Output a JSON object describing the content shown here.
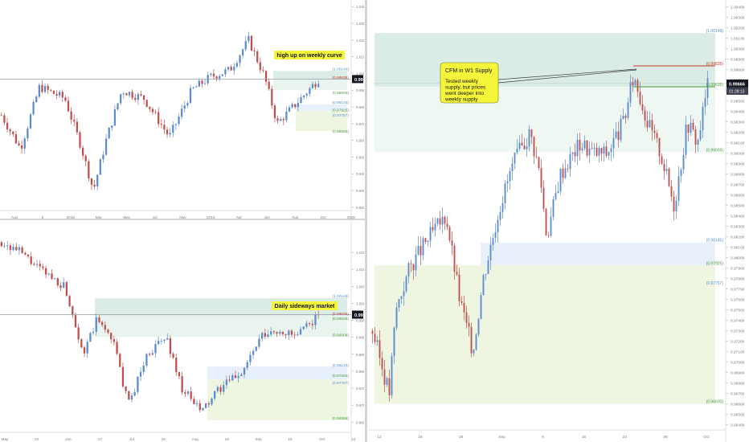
{
  "chart_data": [
    {
      "type": "candlestick",
      "timeframe": "weekly",
      "annotation": "high up on weekly curve",
      "price_axis_ticks": [
        "1.04000",
        "1.03000",
        "1.02000",
        "1.01000",
        "1.00000",
        "0.99000",
        "0.98000",
        "0.97000",
        "0.96000",
        "0.95000",
        "0.94000",
        "0.93000",
        "0.92000"
      ],
      "time_axis_ticks": [
        "Aug",
        "9",
        "2018",
        "Mar",
        "May",
        "Jul",
        "Nov",
        "2019",
        "Apr",
        "Jun",
        "Aug",
        "Oct",
        "2020"
      ],
      "current_price": "0.99666",
      "zone_labels": [
        {
          "text": "(1.00149)",
          "color": "#5b8fd4"
        },
        {
          "text": "(0.99635)",
          "color": "#c0392b"
        },
        {
          "text": "(0.99009)",
          "color": "#4a9a3c"
        },
        {
          "text": "(0.98145)",
          "color": "#5b8fd4"
        },
        {
          "text": "(0.97925)",
          "color": "#4a9a3c"
        },
        {
          "text": "(0.97757)",
          "color": "#5b8fd4"
        },
        {
          "text": "(0.96558)",
          "color": "#4a9a3c"
        }
      ],
      "ylim": [
        0.918,
        1.043
      ]
    },
    {
      "type": "candlestick",
      "timeframe": "daily",
      "annotation": "Daily sideways market",
      "price_axis_ticks": [
        "1.01500",
        "1.01000",
        "1.00500",
        "1.00000",
        "0.99500",
        "0.99000",
        "0.98500",
        "0.98000",
        "0.97500",
        "0.97000",
        "0.96500"
      ],
      "time_axis_ticks": [
        "May",
        "13",
        "Jun",
        "17",
        "Jul",
        "15",
        "Aug",
        "19",
        "Sep",
        "16",
        "Oct",
        "14"
      ],
      "current_price": "0.99666",
      "zone_labels": [
        {
          "text": "(1.00149)",
          "color": "#5b8fd4"
        },
        {
          "text": "(0.99635)",
          "color": "#c0392b"
        },
        {
          "text": "(0.99635)",
          "color": "#4a9a3c"
        },
        {
          "text": "(0.99009)",
          "color": "#4a9a3c"
        },
        {
          "text": "(0.98145)",
          "color": "#5b8fd4"
        },
        {
          "text": "(0.97925)",
          "color": "#4a9a3c"
        },
        {
          "text": "(0.97757)",
          "color": "#5b8fd4"
        },
        {
          "text": "(0.96558)",
          "color": "#4a9a3c"
        }
      ],
      "ylim": [
        0.962,
        1.024
      ]
    },
    {
      "type": "candlestick",
      "timeframe": "H4",
      "callout_title": "CFM in W1 Supply",
      "callout_body": [
        "Tested weekly",
        "supply, but prices",
        "went deeper into",
        "weekly supply"
      ],
      "price_axis_ticks": [
        "1.00400",
        "1.00300",
        "1.00200",
        "1.00100",
        "1.00000",
        "0.99900",
        "0.99800",
        "0.99700",
        "0.99600",
        "0.99500",
        "0.99400",
        "0.99300",
        "0.99200",
        "0.99100",
        "0.99000",
        "0.98900",
        "0.98800",
        "0.98700",
        "0.98600",
        "0.98500",
        "0.98400",
        "0.98300",
        "0.98200",
        "0.98100",
        "0.98000",
        "0.97900",
        "0.97800",
        "0.97700",
        "0.97600",
        "0.97500",
        "0.97400",
        "0.97300",
        "0.97200",
        "0.97100",
        "0.97000",
        "0.96900",
        "0.96800",
        "0.96700",
        "0.96600",
        "0.96500",
        "0.96400"
      ],
      "time_axis_ticks": [
        "12",
        "19",
        "26",
        "Sep",
        "9",
        "16",
        "23",
        "26",
        "Oct"
      ],
      "current_price": "0.99666",
      "countdown": "01:28:13",
      "zone_labels": [
        {
          "text": "(1.00149)",
          "color": "#5b8fd4"
        },
        {
          "text": "(0.99835)",
          "color": "#c0392b"
        },
        {
          "text": "(0.99635)",
          "color": "#4a9a3c"
        },
        {
          "text": "(0.99009)",
          "color": "#4a9a3c"
        },
        {
          "text": "(0.98145)",
          "color": "#5b8fd4"
        },
        {
          "text": "(0.97925)",
          "color": "#4a9a3c"
        },
        {
          "text": "(0.97757)",
          "color": "#5b8fd4"
        },
        {
          "text": "(0.96600)",
          "color": "#4a9a3c"
        }
      ],
      "ylim": [
        0.9635,
        1.0045
      ]
    }
  ],
  "colors": {
    "bull": "#5b8bd1",
    "bear": "#c0504d",
    "supply_fill": "#dbece7",
    "demand_fill": "#eef6e2",
    "blue_zone": "#e8f0fb",
    "price_tag": "#131722",
    "callout_bg": "#f5f53a"
  }
}
